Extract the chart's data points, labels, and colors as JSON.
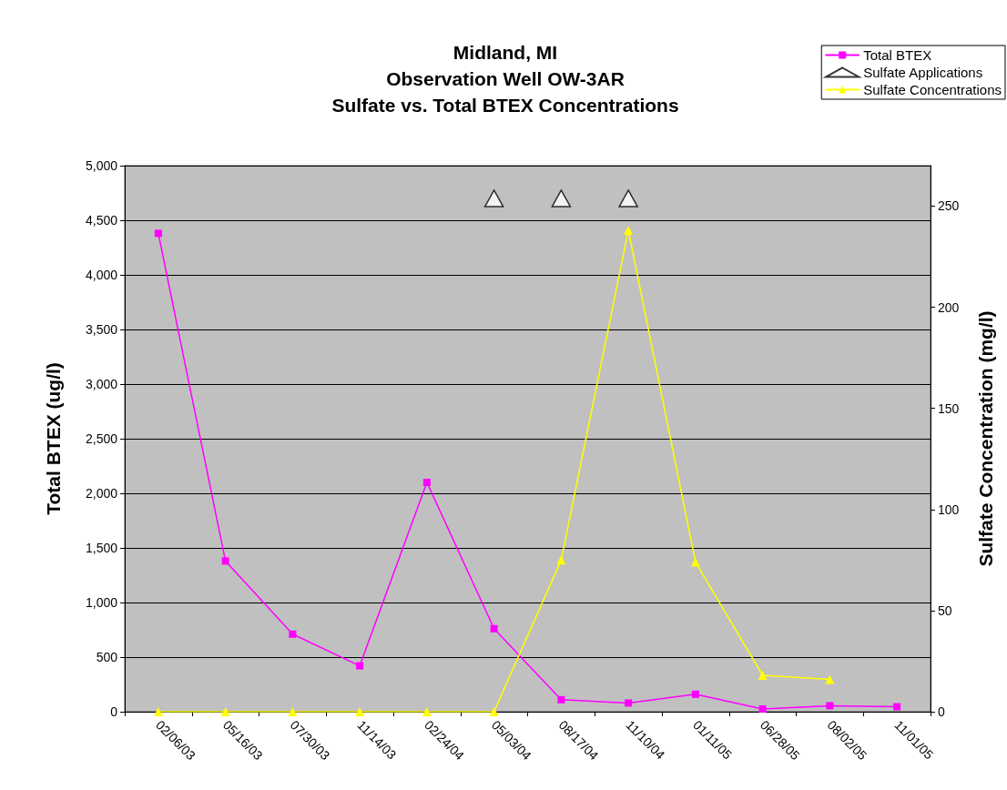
{
  "chart_data": {
    "type": "line",
    "title": "Midland, MI\nObservation Well OW-3AR\nSulfate vs. Total BTEX Concentrations",
    "ylabel": "Total BTEX (ug/l)",
    "y2label": "Sulfate Concentration (mg/l)",
    "categories": [
      "02/06/03",
      "05/16/03",
      "07/30/03",
      "11/14/03",
      "02/24/04",
      "05/03/04",
      "08/17/04",
      "11/10/04",
      "01/11/05",
      "06/28/05",
      "08/02/05",
      "11/01/05"
    ],
    "series": [
      {
        "name": "Total BTEX",
        "color": "#ff00ff",
        "marker": "square",
        "values": [
          4380,
          1380,
          710,
          420,
          2100,
          760,
          110,
          80,
          160,
          25,
          55,
          45
        ]
      },
      {
        "name": "Sulfate Applications",
        "type": "scatter",
        "color": "#000000",
        "marker": "triangle",
        "values": [
          null,
          null,
          null,
          null,
          null,
          4700,
          4700,
          4700,
          null,
          null,
          null,
          null
        ]
      },
      {
        "name": "Sulfate Concentrations",
        "color": "#ffff00",
        "marker": "triangle",
        "axis": "y2",
        "values": [
          0,
          0,
          0,
          0,
          0,
          0,
          75,
          238,
          74,
          18,
          16,
          null
        ]
      }
    ],
    "ylim": [
      0,
      5000
    ],
    "yticks": [
      0,
      {
        "value": 500,
        "label": "500"
      },
      {
        "value": 1000,
        "label": "1,000"
      },
      {
        "value": 1500,
        "label": "1,500"
      },
      {
        "value": 2000,
        "label": "2,000"
      },
      {
        "value": 2500,
        "label": "2,500"
      },
      {
        "value": 3000,
        "label": "3,000"
      },
      {
        "value": 3500,
        "label": "3,500"
      },
      {
        "value": 4000,
        "label": "4,000"
      },
      {
        "value": 4500,
        "label": "4,500"
      },
      {
        "value": 5000,
        "label": "5,000"
      }
    ],
    "y2lim": [
      0,
      270
    ],
    "y2ticks": [
      0,
      50,
      100,
      150,
      200,
      250
    ],
    "grid": "y",
    "legend": "top right"
  }
}
